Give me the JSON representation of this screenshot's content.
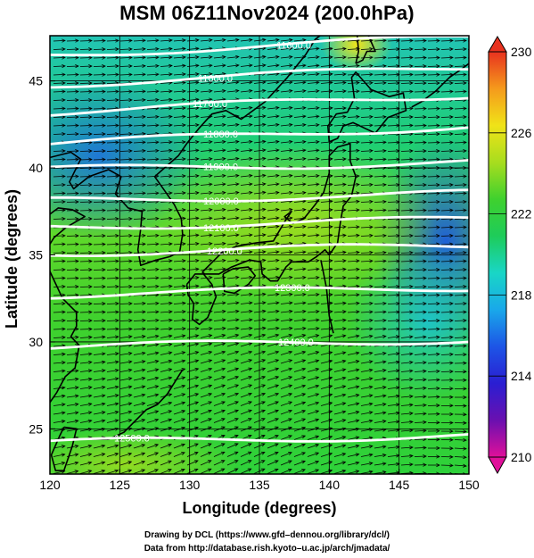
{
  "title": "MSM 06Z11Nov2024 (200.0hPa)",
  "map": {
    "xlabel": "Longitude (degrees)",
    "ylabel": "Latitude  (degrees)",
    "lon_ticks": [
      "120",
      "125",
      "130",
      "135",
      "140",
      "145",
      "150"
    ],
    "lat_ticks": [
      "25",
      "30",
      "35",
      "40",
      "45"
    ],
    "lon_range": [
      120,
      150
    ],
    "lat_range": [
      22.4,
      47.6
    ],
    "colorbar": {
      "ticks": [
        "230",
        "226",
        "222",
        "218",
        "214",
        "210"
      ],
      "range": [
        210,
        230
      ],
      "colors": [
        "#e0109a",
        "#6a10b0",
        "#2a1ed2",
        "#1d55e6",
        "#19a8ea",
        "#19d6c6",
        "#1ecc5a",
        "#3fd12e",
        "#a8dd1e",
        "#f0e318",
        "#f59a1c",
        "#e8321f"
      ]
    },
    "contours": [
      {
        "label": "11600.0",
        "lat": 46.5
      },
      {
        "label": "11600.0",
        "lat": 44.8
      },
      {
        "label": "11700.0",
        "lat": 43.2
      },
      {
        "label": "11800.0",
        "lat": 41.4
      },
      {
        "label": "11900.0",
        "lat": 39.9
      },
      {
        "label": "12000.0",
        "lat": 38.1
      },
      {
        "label": "12100.0",
        "lat": 36.6
      },
      {
        "label": "12200.0",
        "lat": 35.1
      },
      {
        "label": "12300.0",
        "lat": 32.7
      },
      {
        "label": "12400.0",
        "lat": 29.7
      },
      {
        "label": "12500.0",
        "lat": 24.2
      }
    ]
  },
  "credits": {
    "line1": "Drawing by DCL (https://www.gfd–dennou.org/library/dcl/)",
    "line2": "Data from http://database.rish.kyoto–u.ac.jp/arch/jmadata/"
  }
}
